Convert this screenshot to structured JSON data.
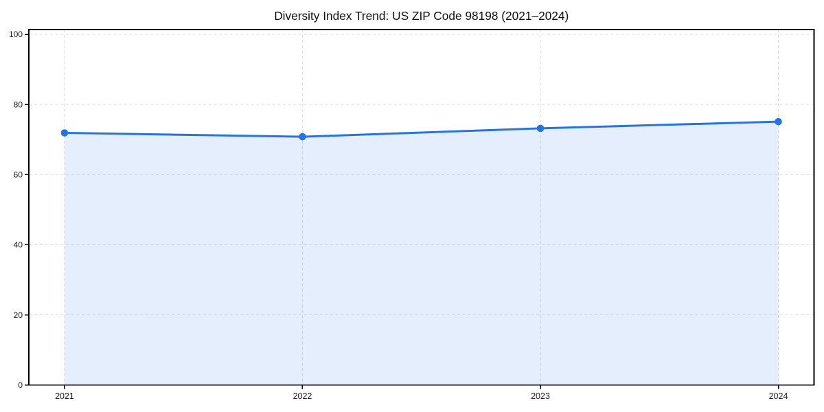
{
  "page": {
    "background": "#ffffff"
  },
  "chart_data": {
    "type": "area",
    "title": "Diversity Index Trend: US ZIP Code 98198 (2021–2024)",
    "series_name": "Diversity Index",
    "x": [
      "2021",
      "2022",
      "2023",
      "2024"
    ],
    "values": [
      71.9,
      70.8,
      73.2,
      75.1
    ],
    "xlabel": "",
    "ylabel": "",
    "ylim": [
      0,
      100
    ],
    "yticks": [
      0,
      20,
      40,
      60,
      80,
      100
    ],
    "xticklabels": [
      "2021",
      "2022",
      "2023",
      "2024"
    ],
    "grid": {
      "horizontal": true,
      "vertical": true,
      "style": "dashed"
    },
    "legend": "none",
    "colors": {
      "line": "#2474e4",
      "marker": "#2474e4",
      "fill": "#2474e4",
      "fill_opacity": 0.12,
      "grid": "#dcdcdc",
      "axis": "#000000",
      "tick_text": "#1a1a1a",
      "title_text": "#0f0f0f",
      "background": "#ffffff"
    }
  }
}
